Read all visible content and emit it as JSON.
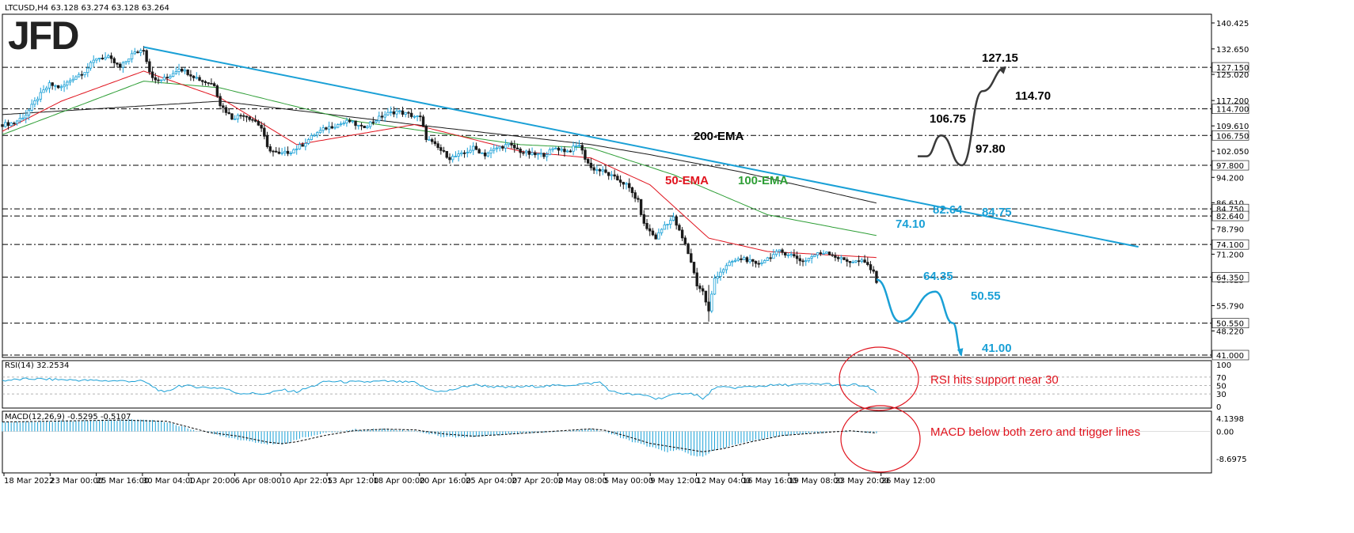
{
  "header": {
    "symbol_info": "LTCUSD,H4  63.128 63.274 63.128 63.264"
  },
  "logo": {
    "text": "JFD"
  },
  "price_axis": {
    "ticks": [
      "140.425",
      "132.650",
      "125.020",
      "117.200",
      "109.610",
      "102.050",
      "94.200",
      "86.610",
      "78.790",
      "71.200",
      "63.625",
      "55.790",
      "48.220"
    ],
    "highlighted_levels": [
      "127.150",
      "114.700",
      "106.750",
      "97.800",
      "84.750",
      "82.640",
      "74.100",
      "64.350",
      "50.550",
      "41.000"
    ]
  },
  "time_axis": {
    "labels": [
      "18 Mar 2022",
      "23 Mar 00:00",
      "25 Mar 16:00",
      "30 Mar 04:00",
      "1 Apr 20:00",
      "6 Apr 08:00",
      "10 Apr 22:05",
      "13 Apr 12:00",
      "18 Apr 00:00",
      "20 Apr 16:00",
      "25 Apr 04:00",
      "27 Apr 20:00",
      "2 May 08:00",
      "5 May 00:00",
      "9 May 12:00",
      "12 May 04:00",
      "16 May 16:00",
      "19 May 08:00",
      "23 May 20:00",
      "26 May 12:00"
    ]
  },
  "annotations": {
    "levels_black": [
      "127.15",
      "114.70",
      "106.75",
      "97.80"
    ],
    "levels_blue": [
      "84.75",
      "82.64",
      "74.10",
      "64.35",
      "50.55",
      "41.00"
    ],
    "ema_labels": {
      "ema200": "200-EMA",
      "ema100": "100-EMA",
      "ema50": "50-EMA"
    },
    "rsi_note": "RSI hits support near 30",
    "macd_note": "MACD below both zero and trigger lines"
  },
  "rsi_panel": {
    "title": "RSI(14) 32.2534",
    "ticks": [
      "100",
      "70",
      "50",
      "30",
      "0"
    ]
  },
  "macd_panel": {
    "title": "MACD(12,26,9) -0.5295 -0.5107",
    "ticks": [
      "4.1398",
      "0.00",
      "-8.6975"
    ]
  },
  "colors": {
    "trendline": "#1aa0d6",
    "ema50": "#e0141e",
    "ema100": "#2e9e36",
    "ema200": "#1a1a1a",
    "candle_up": "#1aa0d6",
    "candle_down": "#1a1a1a",
    "rsi_line": "#1aa0d6",
    "macd_hist": "#1aa0d6",
    "note_circle": "#e0141e"
  },
  "chart_data": [
    {
      "type": "candlestick",
      "title": "LTCUSD,H4",
      "ylim": [
        41.0,
        140.425
      ],
      "x_range": [
        "18 Mar 2022",
        "26 May 12:00"
      ],
      "price_path": [
        [
          0,
          110
        ],
        [
          4,
          110.5
        ],
        [
          8,
          113
        ],
        [
          12,
          118
        ],
        [
          16,
          122
        ],
        [
          20,
          121
        ],
        [
          24,
          124
        ],
        [
          28,
          126
        ],
        [
          32,
          130
        ],
        [
          36,
          130
        ],
        [
          40,
          127
        ],
        [
          44,
          131
        ],
        [
          48,
          132.6
        ],
        [
          50,
          126
        ],
        [
          52,
          123
        ],
        [
          56,
          124
        ],
        [
          60,
          127
        ],
        [
          64,
          125
        ],
        [
          68,
          123
        ],
        [
          72,
          122
        ],
        [
          74,
          116
        ],
        [
          78,
          112
        ],
        [
          82,
          113
        ],
        [
          86,
          111
        ],
        [
          88,
          109
        ],
        [
          90,
          103
        ],
        [
          94,
          101
        ],
        [
          98,
          102
        ],
        [
          102,
          104
        ],
        [
          106,
          107
        ],
        [
          110,
          109
        ],
        [
          114,
          110
        ],
        [
          118,
          111
        ],
        [
          122,
          109
        ],
        [
          126,
          111
        ],
        [
          130,
          113
        ],
        [
          134,
          114
        ],
        [
          138,
          113
        ],
        [
          142,
          112
        ],
        [
          144,
          106
        ],
        [
          148,
          103
        ],
        [
          152,
          100
        ],
        [
          156,
          101
        ],
        [
          160,
          103
        ],
        [
          164,
          101
        ],
        [
          168,
          103
        ],
        [
          172,
          104
        ],
        [
          176,
          102
        ],
        [
          180,
          101
        ],
        [
          184,
          101
        ],
        [
          188,
          103
        ],
        [
          192,
          102
        ],
        [
          196,
          104
        ],
        [
          198,
          100
        ],
        [
          200,
          97
        ],
        [
          204,
          96
        ],
        [
          208,
          94
        ],
        [
          212,
          92
        ],
        [
          216,
          87
        ],
        [
          218,
          80
        ],
        [
          222,
          76
        ],
        [
          225,
          80
        ],
        [
          228,
          82
        ],
        [
          232,
          74
        ],
        [
          234,
          69
        ],
        [
          236,
          62
        ],
        [
          238,
          60
        ],
        [
          240,
          54
        ],
        [
          242,
          64
        ],
        [
          244,
          66
        ],
        [
          248,
          69
        ],
        [
          252,
          70
        ],
        [
          256,
          68
        ],
        [
          260,
          70
        ],
        [
          264,
          72
        ],
        [
          268,
          71
        ],
        [
          272,
          69
        ],
        [
          276,
          71
        ],
        [
          280,
          72
        ],
        [
          284,
          70
        ],
        [
          288,
          69
        ],
        [
          292,
          69
        ],
        [
          294,
          68
        ],
        [
          296,
          65.5
        ],
        [
          297,
          63.26
        ]
      ],
      "ema50_path": [
        [
          0,
          108
        ],
        [
          20,
          117
        ],
        [
          48,
          126
        ],
        [
          74,
          118
        ],
        [
          100,
          104
        ],
        [
          140,
          110
        ],
        [
          176,
          102
        ],
        [
          200,
          100
        ],
        [
          220,
          92
        ],
        [
          240,
          76
        ],
        [
          260,
          72
        ],
        [
          297,
          70.2
        ]
      ],
      "ema100_path": [
        [
          0,
          107
        ],
        [
          48,
          123
        ],
        [
          74,
          121
        ],
        [
          120,
          111
        ],
        [
          176,
          104
        ],
        [
          200,
          103
        ],
        [
          228,
          95
        ],
        [
          260,
          83
        ],
        [
          297,
          76.8
        ]
      ],
      "ema200_path": [
        [
          0,
          113
        ],
        [
          74,
          117
        ],
        [
          140,
          110
        ],
        [
          200,
          104
        ],
        [
          220,
          101
        ],
        [
          250,
          96
        ],
        [
          297,
          86.5
        ]
      ],
      "trendline": [
        [
          48,
          133.2
        ],
        [
          386,
          73.4
        ]
      ],
      "horizontal_levels": [
        127.15,
        114.7,
        106.75,
        97.8,
        84.75,
        82.64,
        74.1,
        64.35,
        50.55,
        41.0
      ],
      "bullish_scenario": {
        "path": [
          [
            311,
            100.5
          ],
          [
            314,
            100.5
          ],
          [
            319,
            106.75
          ],
          [
            326,
            97.8
          ],
          [
            333,
            120
          ],
          [
            341,
            127.15
          ]
        ],
        "levels": [
          97.8,
          106.75,
          114.7,
          127.15
        ]
      },
      "bearish_scenario": {
        "path": [
          [
            297,
            63.6
          ],
          [
            305,
            51
          ],
          [
            317,
            60
          ],
          [
            323,
            50.55
          ],
          [
            326,
            41.0
          ]
        ],
        "levels": [
          64.35,
          50.55,
          41.0
        ]
      }
    },
    {
      "type": "line",
      "title": "RSI(14) 32.2534",
      "ylim": [
        0,
        100
      ],
      "reference_lines": [
        70,
        50,
        30
      ],
      "path": [
        [
          0,
          62
        ],
        [
          10,
          66
        ],
        [
          20,
          64
        ],
        [
          30,
          62
        ],
        [
          40,
          61
        ],
        [
          48,
          60
        ],
        [
          55,
          32
        ],
        [
          60,
          50
        ],
        [
          70,
          45
        ],
        [
          75,
          44
        ],
        [
          80,
          32
        ],
        [
          90,
          30
        ],
        [
          95,
          40
        ],
        [
          100,
          35
        ],
        [
          110,
          60
        ],
        [
          120,
          58
        ],
        [
          130,
          60
        ],
        [
          140,
          57
        ],
        [
          145,
          40
        ],
        [
          150,
          35
        ],
        [
          160,
          52
        ],
        [
          170,
          45
        ],
        [
          180,
          48
        ],
        [
          190,
          50
        ],
        [
          200,
          55
        ],
        [
          203,
          58
        ],
        [
          207,
          35
        ],
        [
          212,
          30
        ],
        [
          220,
          25
        ],
        [
          222,
          18
        ],
        [
          228,
          27
        ],
        [
          232,
          33
        ],
        [
          236,
          28
        ],
        [
          238,
          16
        ],
        [
          242,
          45
        ],
        [
          250,
          45
        ],
        [
          260,
          50
        ],
        [
          270,
          52
        ],
        [
          280,
          54
        ],
        [
          285,
          49
        ],
        [
          290,
          52
        ],
        [
          294,
          46
        ],
        [
          297,
          32
        ]
      ]
    },
    {
      "type": "bar",
      "title": "MACD(12,26,9) -0.5295 -0.5107",
      "ylim": [
        -8.6975,
        4.1398
      ],
      "histogram_path": [
        [
          0,
          2.8
        ],
        [
          20,
          3.3
        ],
        [
          40,
          3.6
        ],
        [
          48,
          3.8
        ],
        [
          56,
          3.0
        ],
        [
          62,
          1.2
        ],
        [
          70,
          -0.5
        ],
        [
          80,
          -2.5
        ],
        [
          90,
          -4.0
        ],
        [
          95,
          -4.3
        ],
        [
          100,
          -2.5
        ],
        [
          110,
          -0.5
        ],
        [
          120,
          0.6
        ],
        [
          130,
          0.8
        ],
        [
          140,
          0.2
        ],
        [
          145,
          -0.8
        ],
        [
          150,
          -1.8
        ],
        [
          160,
          -1.8
        ],
        [
          170,
          -1.0
        ],
        [
          180,
          -0.4
        ],
        [
          190,
          0.0
        ],
        [
          200,
          1.0
        ],
        [
          205,
          -0.2
        ],
        [
          210,
          -2.0
        ],
        [
          220,
          -5.0
        ],
        [
          226,
          -6.5
        ],
        [
          230,
          -6.0
        ],
        [
          234,
          -7.5
        ],
        [
          238,
          -8.2
        ],
        [
          242,
          -6.0
        ],
        [
          250,
          -4.0
        ],
        [
          260,
          -2.0
        ],
        [
          270,
          -0.8
        ],
        [
          280,
          -0.3
        ],
        [
          288,
          0.0
        ],
        [
          294,
          -0.3
        ],
        [
          297,
          -0.53
        ]
      ],
      "signal_path": [
        [
          0,
          3.0
        ],
        [
          40,
          3.6
        ],
        [
          56,
          3.2
        ],
        [
          64,
          1.2
        ],
        [
          70,
          -0.3
        ],
        [
          80,
          -1.5
        ],
        [
          90,
          -3.4
        ],
        [
          95,
          -3.9
        ],
        [
          100,
          -3.3
        ],
        [
          110,
          -1.2
        ],
        [
          120,
          0.3
        ],
        [
          130,
          0.7
        ],
        [
          140,
          0.5
        ],
        [
          150,
          -0.8
        ],
        [
          160,
          -1.5
        ],
        [
          170,
          -1.0
        ],
        [
          180,
          -0.4
        ],
        [
          200,
          0.8
        ],
        [
          205,
          0.3
        ],
        [
          212,
          -1.5
        ],
        [
          220,
          -3.8
        ],
        [
          230,
          -5.3
        ],
        [
          238,
          -6.5
        ],
        [
          245,
          -5.5
        ],
        [
          255,
          -3.2
        ],
        [
          265,
          -1.3
        ],
        [
          280,
          -0.3
        ],
        [
          288,
          0.2
        ],
        [
          297,
          -0.51
        ]
      ]
    }
  ]
}
